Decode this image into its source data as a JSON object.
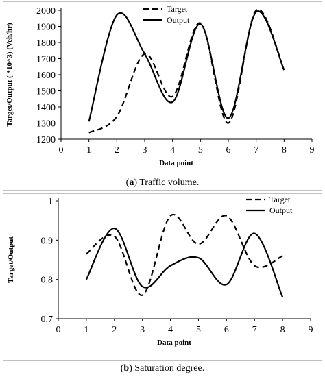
{
  "captions": {
    "a": {
      "open": "(",
      "letter": "a",
      "close": ")",
      "text": " Traffic volume."
    },
    "b": {
      "open": "(",
      "letter": "b",
      "close": ")",
      "text": " Saturation degree."
    }
  },
  "chart_data": [
    {
      "type": "line",
      "xlabel": "Data point",
      "ylabel": "Target/Output ( *10^3) (Veh/hr)",
      "xlim": [
        0,
        9
      ],
      "ylim": [
        1200,
        2000
      ],
      "x_ticks": [
        "0",
        "1",
        "2",
        "3",
        "4",
        "5",
        "6",
        "7",
        "8",
        "9"
      ],
      "y_ticks": [
        "1200",
        "1300",
        "1400",
        "1500",
        "1600",
        "1700",
        "1800",
        "1900",
        "2000"
      ],
      "grid": false,
      "legend_position": "top-center",
      "x": [
        1,
        2,
        3,
        4,
        5,
        6,
        7,
        8
      ],
      "series": [
        {
          "name": "Target",
          "style": "dashed",
          "values": [
            1240,
            1340,
            1730,
            1465,
            1920,
            1300,
            2000,
            1630
          ]
        },
        {
          "name": "Output",
          "style": "solid",
          "values": [
            1310,
            1970,
            1730,
            1430,
            1915,
            1330,
            1990,
            1630
          ]
        }
      ]
    },
    {
      "type": "line",
      "xlabel": "Data point",
      "ylabel": "Target/Output",
      "xlim": [
        0,
        9
      ],
      "ylim": [
        0.7,
        1.0
      ],
      "x_ticks": [
        "0",
        "1",
        "2",
        "3",
        "4",
        "5",
        "6",
        "7",
        "8",
        "9"
      ],
      "y_ticks": [
        "0.7",
        "0.8",
        "0.9",
        "1"
      ],
      "grid": false,
      "legend_position": "top-right",
      "x": [
        1,
        2,
        3,
        4,
        5,
        6,
        7,
        8
      ],
      "series": [
        {
          "name": "Target",
          "style": "dashed",
          "values": [
            0.865,
            0.91,
            0.76,
            0.962,
            0.89,
            0.962,
            0.835,
            0.86
          ]
        },
        {
          "name": "Output",
          "style": "solid",
          "values": [
            0.8,
            0.93,
            0.782,
            0.835,
            0.855,
            0.787,
            0.917,
            0.755
          ]
        }
      ]
    }
  ]
}
